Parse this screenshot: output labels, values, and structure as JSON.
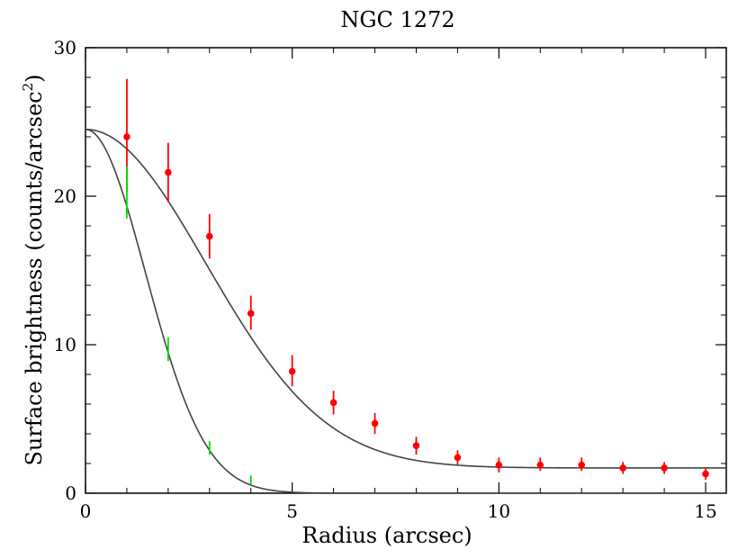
{
  "chart_data": {
    "type": "scatter",
    "title": "NGC 1272",
    "xlabel": "Radius (arcsec)",
    "ylabel": "Surface brightness (counts/arcsec",
    "ylabel_superscript": "2",
    "ylabel_suffix": ")",
    "xlim": [
      0,
      15.5
    ],
    "ylim": [
      0,
      30
    ],
    "x_ticks": [
      0,
      5,
      10,
      15
    ],
    "y_ticks": [
      0,
      10,
      20,
      30
    ],
    "x_minor_step": 1,
    "y_minor_step": 2,
    "grid": false,
    "series": [
      {
        "color": "#ff0000",
        "marker": "circle",
        "points": [
          {
            "x": 1,
            "y": 24.0,
            "lo": 20.3,
            "hi": 27.9
          },
          {
            "x": 2,
            "y": 21.6,
            "lo": 19.6,
            "hi": 23.6
          },
          {
            "x": 3,
            "y": 17.3,
            "lo": 15.8,
            "hi": 18.8
          },
          {
            "x": 4,
            "y": 12.1,
            "lo": 11.0,
            "hi": 13.3
          },
          {
            "x": 5,
            "y": 8.2,
            "lo": 7.2,
            "hi": 9.3
          },
          {
            "x": 6,
            "y": 6.1,
            "lo": 5.3,
            "hi": 6.9
          },
          {
            "x": 7,
            "y": 4.7,
            "lo": 4.0,
            "hi": 5.4
          },
          {
            "x": 8,
            "y": 3.2,
            "lo": 2.6,
            "hi": 3.8
          },
          {
            "x": 9,
            "y": 2.4,
            "lo": 1.9,
            "hi": 2.9
          },
          {
            "x": 10,
            "y": 1.9,
            "lo": 1.4,
            "hi": 2.4
          },
          {
            "x": 11,
            "y": 1.9,
            "lo": 1.5,
            "hi": 2.4
          },
          {
            "x": 12,
            "y": 1.9,
            "lo": 1.5,
            "hi": 2.4
          },
          {
            "x": 13,
            "y": 1.7,
            "lo": 1.3,
            "hi": 2.1
          },
          {
            "x": 14,
            "y": 1.7,
            "lo": 1.3,
            "hi": 2.1
          },
          {
            "x": 15,
            "y": 1.3,
            "lo": 0.9,
            "hi": 1.7
          }
        ]
      },
      {
        "color": "#00dd00",
        "marker": "none",
        "points": [
          {
            "x": 1,
            "y": 20.2,
            "lo": 18.5,
            "hi": 22.0
          },
          {
            "x": 2,
            "y": 9.7,
            "lo": 8.9,
            "hi": 10.5
          },
          {
            "x": 3,
            "y": 3.0,
            "lo": 2.6,
            "hi": 3.5
          },
          {
            "x": 4,
            "y": 0.9,
            "lo": 0.6,
            "hi": 1.2
          }
        ]
      }
    ],
    "model_curves": [
      {
        "color": "#444444",
        "form": "gaussian_plus_const",
        "amplitude": 22.8,
        "sigma": 2.9,
        "background": 1.7
      },
      {
        "color": "#444444",
        "form": "gaussian",
        "amplitude": 24.5,
        "sigma": 1.45
      }
    ]
  }
}
